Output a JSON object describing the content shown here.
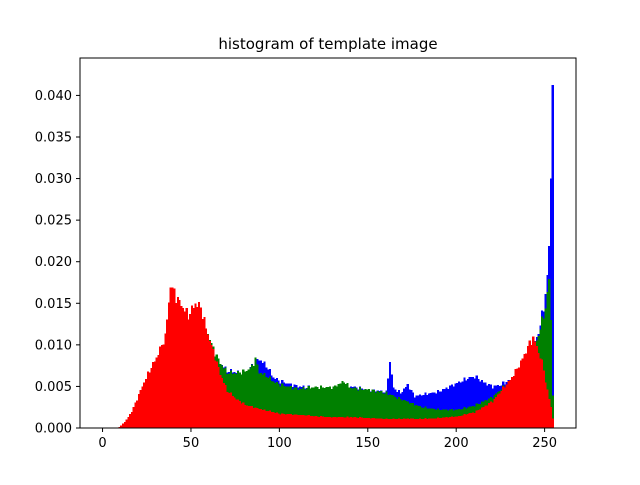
{
  "chart_data": {
    "type": "bar",
    "title": "histogram of template image",
    "xlabel": "",
    "ylabel": "",
    "xlim": [
      -12.75,
      267.75
    ],
    "ylim": [
      0,
      0.0445
    ],
    "grid": false,
    "legend": "none",
    "xticks": [
      0,
      50,
      100,
      150,
      200,
      250
    ],
    "xtick_labels": [
      "0",
      "50",
      "100",
      "150",
      "200",
      "250"
    ],
    "yticks": [
      0,
      0.005,
      0.01,
      0.015,
      0.02,
      0.025,
      0.03,
      0.035,
      0.04
    ],
    "ytick_labels": [
      "0.000",
      "0.005",
      "0.010",
      "0.015",
      "0.020",
      "0.025",
      "0.030",
      "0.035",
      "0.040"
    ],
    "bins": {
      "start": 0,
      "width": 1,
      "count": 256
    },
    "series": [
      {
        "color": "#0000ff",
        "anchors": [
          [
            0,
            0
          ],
          [
            8,
            0
          ],
          [
            10,
            0.0003
          ],
          [
            13,
            0.001
          ],
          [
            16,
            0.002
          ],
          [
            20,
            0.004
          ],
          [
            25,
            0.0065
          ],
          [
            30,
            0.0085
          ],
          [
            35,
            0.011
          ],
          [
            38,
            0.0165
          ],
          [
            41,
            0.015
          ],
          [
            45,
            0.0142
          ],
          [
            48,
            0.0132
          ],
          [
            52,
            0.0145
          ],
          [
            55,
            0.014
          ],
          [
            58,
            0.012
          ],
          [
            62,
            0.0095
          ],
          [
            66,
            0.0078
          ],
          [
            70,
            0.0069
          ],
          [
            75,
            0.0067
          ],
          [
            80,
            0.0067
          ],
          [
            84,
            0.0075
          ],
          [
            88,
            0.0083
          ],
          [
            92,
            0.0075
          ],
          [
            96,
            0.0061
          ],
          [
            100,
            0.0056
          ],
          [
            110,
            0.005
          ],
          [
            120,
            0.0048
          ],
          [
            130,
            0.0048
          ],
          [
            140,
            0.005
          ],
          [
            150,
            0.0046
          ],
          [
            155,
            0.0045
          ],
          [
            160,
            0.0043
          ],
          [
            162,
            0.008
          ],
          [
            164,
            0.0048
          ],
          [
            168,
            0.0042
          ],
          [
            172,
            0.0052
          ],
          [
            176,
            0.0038
          ],
          [
            180,
            0.004
          ],
          [
            190,
            0.0044
          ],
          [
            200,
            0.0054
          ],
          [
            205,
            0.0059
          ],
          [
            210,
            0.0062
          ],
          [
            215,
            0.0055
          ],
          [
            220,
            0.005
          ],
          [
            225,
            0.0052
          ],
          [
            230,
            0.0058
          ],
          [
            235,
            0.0066
          ],
          [
            238,
            0.0078
          ],
          [
            240,
            0.0085
          ],
          [
            243,
            0.0098
          ],
          [
            246,
            0.0115
          ],
          [
            249,
            0.0145
          ],
          [
            251,
            0.018
          ],
          [
            252,
            0.022
          ],
          [
            253,
            0.03
          ],
          [
            254,
            0.0425
          ],
          [
            255,
            0
          ]
        ]
      },
      {
        "color": "#008000",
        "anchors": [
          [
            0,
            0
          ],
          [
            8,
            0
          ],
          [
            10,
            0.0003
          ],
          [
            13,
            0.001
          ],
          [
            16,
            0.002
          ],
          [
            20,
            0.004
          ],
          [
            25,
            0.0065
          ],
          [
            30,
            0.0085
          ],
          [
            35,
            0.011
          ],
          [
            38,
            0.0165
          ],
          [
            41,
            0.015
          ],
          [
            45,
            0.0142
          ],
          [
            48,
            0.0132
          ],
          [
            52,
            0.0145
          ],
          [
            55,
            0.014
          ],
          [
            58,
            0.012
          ],
          [
            62,
            0.0095
          ],
          [
            66,
            0.0078
          ],
          [
            70,
            0.0067
          ],
          [
            75,
            0.0066
          ],
          [
            80,
            0.0068
          ],
          [
            84,
            0.0074
          ],
          [
            86,
            0.0083
          ],
          [
            88,
            0.0067
          ],
          [
            92,
            0.0063
          ],
          [
            96,
            0.0056
          ],
          [
            100,
            0.0052
          ],
          [
            110,
            0.0047
          ],
          [
            120,
            0.0049
          ],
          [
            130,
            0.0049
          ],
          [
            136,
            0.0056
          ],
          [
            140,
            0.0048
          ],
          [
            150,
            0.0046
          ],
          [
            155,
            0.0044
          ],
          [
            160,
            0.0042
          ],
          [
            170,
            0.0033
          ],
          [
            180,
            0.0025
          ],
          [
            190,
            0.0022
          ],
          [
            200,
            0.0022
          ],
          [
            210,
            0.0027
          ],
          [
            220,
            0.0037
          ],
          [
            225,
            0.0047
          ],
          [
            230,
            0.0056
          ],
          [
            235,
            0.0068
          ],
          [
            238,
            0.0077
          ],
          [
            241,
            0.0088
          ],
          [
            244,
            0.0098
          ],
          [
            246,
            0.0112
          ],
          [
            248,
            0.0128
          ],
          [
            250,
            0.0145
          ],
          [
            251,
            0.016
          ],
          [
            252,
            0.018
          ],
          [
            253,
            0.013
          ],
          [
            254,
            0.004
          ],
          [
            255,
            0
          ]
        ]
      },
      {
        "color": "#ff0000",
        "anchors": [
          [
            0,
            0
          ],
          [
            8,
            0
          ],
          [
            10,
            0.0003
          ],
          [
            13,
            0.001
          ],
          [
            16,
            0.002
          ],
          [
            20,
            0.004
          ],
          [
            25,
            0.0065
          ],
          [
            30,
            0.0085
          ],
          [
            35,
            0.011
          ],
          [
            38,
            0.0172
          ],
          [
            41,
            0.0158
          ],
          [
            45,
            0.0145
          ],
          [
            48,
            0.0135
          ],
          [
            52,
            0.015
          ],
          [
            55,
            0.0145
          ],
          [
            58,
            0.012
          ],
          [
            62,
            0.0092
          ],
          [
            66,
            0.0065
          ],
          [
            70,
            0.0045
          ],
          [
            75,
            0.0035
          ],
          [
            80,
            0.0028
          ],
          [
            90,
            0.0022
          ],
          [
            100,
            0.0017
          ],
          [
            110,
            0.0016
          ],
          [
            120,
            0.0014
          ],
          [
            130,
            0.0013
          ],
          [
            140,
            0.0013
          ],
          [
            150,
            0.0012
          ],
          [
            160,
            0.0011
          ],
          [
            170,
            0.0011
          ],
          [
            180,
            0.0011
          ],
          [
            190,
            0.0012
          ],
          [
            200,
            0.0014
          ],
          [
            210,
            0.0019
          ],
          [
            220,
            0.0032
          ],
          [
            225,
            0.0045
          ],
          [
            230,
            0.0058
          ],
          [
            235,
            0.0075
          ],
          [
            238,
            0.0088
          ],
          [
            241,
            0.0102
          ],
          [
            243,
            0.0108
          ],
          [
            245,
            0.0098
          ],
          [
            247,
            0.0085
          ],
          [
            249,
            0.0072
          ],
          [
            250,
            0.0055
          ],
          [
            252,
            0.0035
          ],
          [
            253,
            0.0025
          ],
          [
            254,
            0.0012
          ],
          [
            255,
            0
          ]
        ]
      }
    ]
  }
}
